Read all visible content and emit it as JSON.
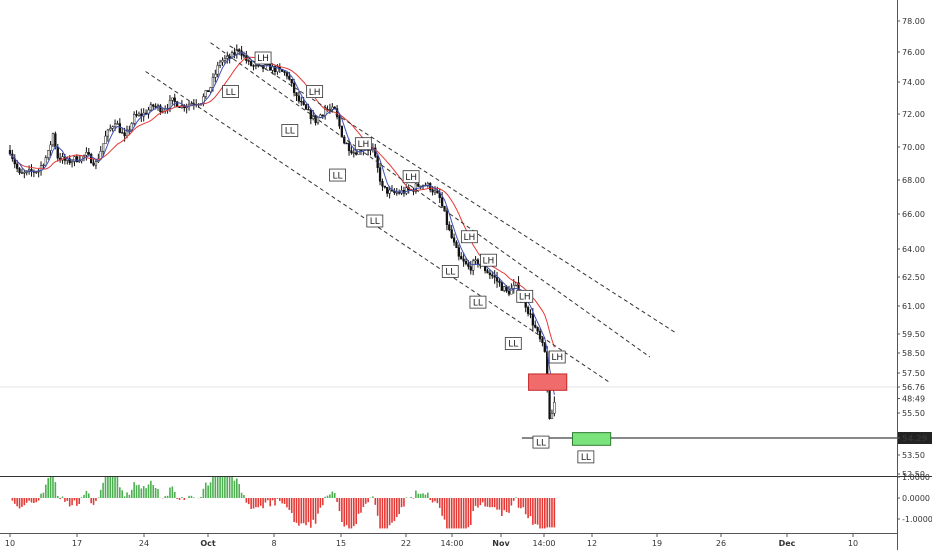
{
  "chart_data": {
    "type": "candlestick",
    "price_pane": {
      "y_axis_ticks": [
        "78.00",
        "76.00",
        "74.00",
        "72.00",
        "70.00",
        "68.00",
        "66.00",
        "64.00",
        "62.50",
        "61.00",
        "59.50",
        "58.50",
        "57.50",
        "56.76",
        "48:49",
        "55.50",
        "54.29",
        "53.50",
        "52.50"
      ],
      "current_price_label": "54.29",
      "countdown_label": "48:49",
      "crosshair_price_label": "56.76",
      "ma_red_color": "#e53935",
      "ma_blue_color": "#3f51b5",
      "candle_color": "#111111",
      "pivot_labels": [
        {
          "text": "LH",
          "day": 26.5,
          "price": 75.6,
          "pos": "above"
        },
        {
          "text": "LL",
          "day": 23.1,
          "price": 73.4,
          "pos": "below"
        },
        {
          "text": "LL",
          "day": 29.3,
          "price": 71.0,
          "pos": "below"
        },
        {
          "text": "LH",
          "day": 31.9,
          "price": 73.4,
          "pos": "above"
        },
        {
          "text": "LL",
          "day": 34.3,
          "price": 68.3,
          "pos": "below"
        },
        {
          "text": "LH",
          "day": 37.0,
          "price": 70.2,
          "pos": "above"
        },
        {
          "text": "LL",
          "day": 38.2,
          "price": 65.6,
          "pos": "below"
        },
        {
          "text": "LH",
          "day": 42.0,
          "price": 68.2,
          "pos": "above"
        },
        {
          "text": "LL",
          "day": 46.1,
          "price": 62.8,
          "pos": "below"
        },
        {
          "text": "LH",
          "day": 48.1,
          "price": 64.7,
          "pos": "above"
        },
        {
          "text": "LH",
          "day": 50.1,
          "price": 63.4,
          "pos": "above"
        },
        {
          "text": "LL",
          "day": 49.0,
          "price": 61.2,
          "pos": "below"
        },
        {
          "text": "LH",
          "day": 53.9,
          "price": 61.5,
          "pos": "above"
        },
        {
          "text": "LL",
          "day": 52.7,
          "price": 59.0,
          "pos": "below"
        },
        {
          "text": "LH",
          "day": 57.3,
          "price": 58.3,
          "pos": "above"
        },
        {
          "text": "LL",
          "day": 55.6,
          "price": 54.1,
          "pos": "below"
        },
        {
          "text": "LL",
          "day": 60.3,
          "price": 53.4,
          "pos": "below"
        }
      ],
      "channel_lines": [
        {
          "x1": 14.2,
          "p1": 74.7,
          "x2": 62.8,
          "p2": 57.0
        },
        {
          "x1": 21.0,
          "p1": 76.6,
          "x2": 67.0,
          "p2": 58.3
        },
        {
          "x1": 23.0,
          "p1": 76.4,
          "x2": 69.6,
          "p2": 59.6
        }
      ],
      "sell_zone": {
        "x1": 54.3,
        "x2": 58.3,
        "p_top": 57.45,
        "p_bottom": 56.6,
        "color": "#f06b6b"
      },
      "target_zone": {
        "x1": 58.9,
        "x2": 62.9,
        "p_top": 54.55,
        "p_bottom": 53.95,
        "color": "#7be37b"
      },
      "support_line": {
        "x1": 53.6,
        "price": 54.29
      }
    },
    "oscillator_pane": {
      "y_axis_ticks": [
        "1.0000",
        "0.0000",
        "-1.0000"
      ],
      "positive_color": "#4caf50",
      "negative_color": "#e53935"
    },
    "x_axis_ticks": [
      "10",
      "17",
      "24",
      "Oct",
      "8",
      "15",
      "22",
      "14:00",
      "Nov",
      "14:00",
      "12",
      "19",
      "26",
      "Dec",
      "10",
      "17"
    ]
  }
}
